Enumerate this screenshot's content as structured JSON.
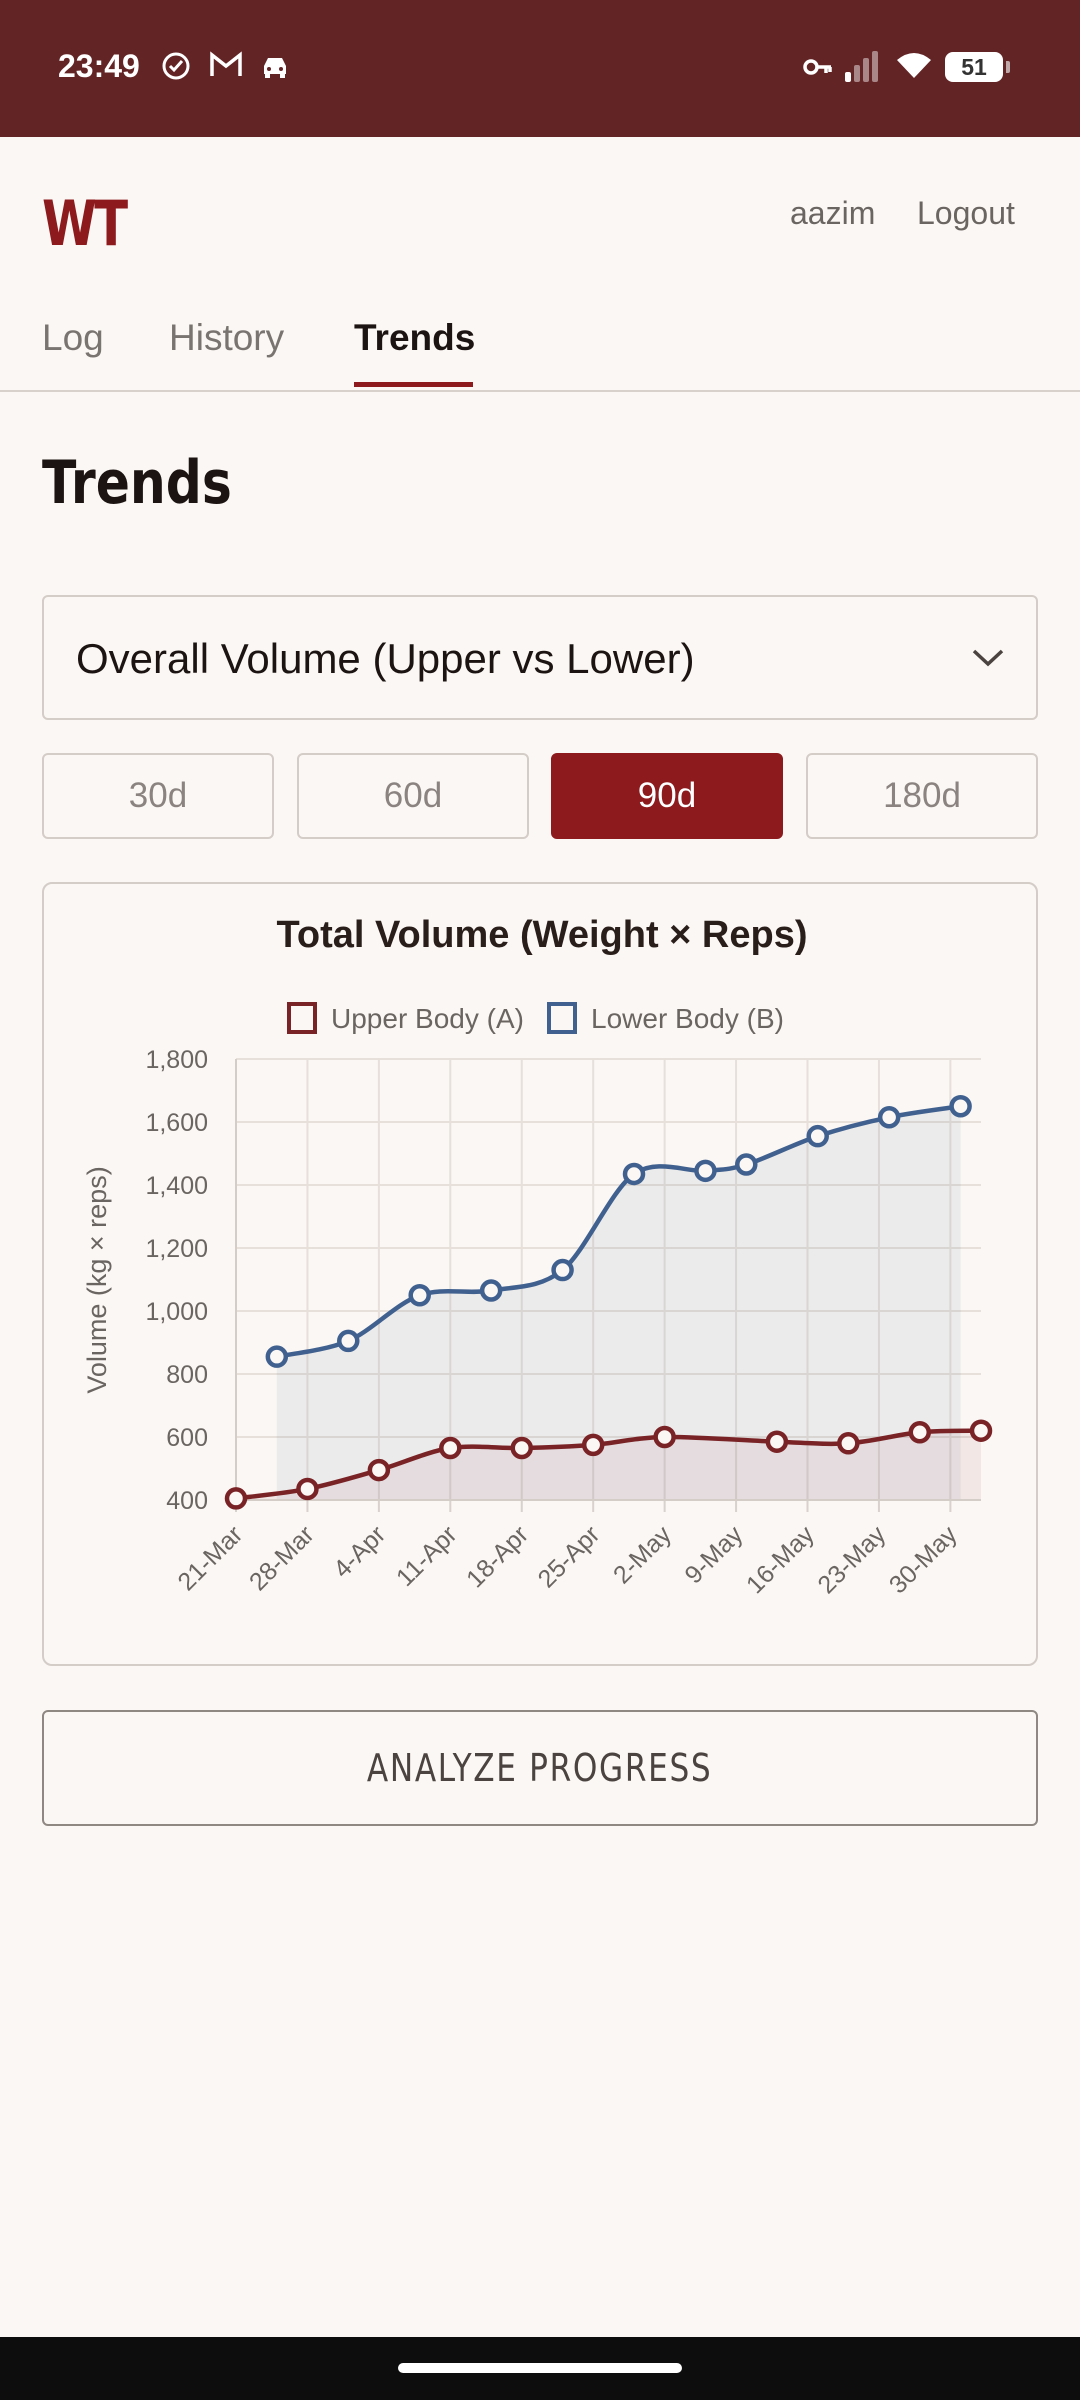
{
  "status_bar": {
    "time": "23:49",
    "battery": "51",
    "icons": [
      "check-circle-icon",
      "gmail-icon",
      "car-icon",
      "vpn-key-icon",
      "signal-icon",
      "wifi-icon",
      "battery-icon"
    ]
  },
  "header": {
    "logo": "WT",
    "username": "aazim",
    "logout_label": "Logout"
  },
  "tabs": [
    {
      "label": "Log",
      "active": false
    },
    {
      "label": "History",
      "active": false
    },
    {
      "label": "Trends",
      "active": true
    }
  ],
  "page_title": "Trends",
  "metric_select": {
    "value": "Overall Volume (Upper vs Lower)"
  },
  "ranges": [
    {
      "label": "30d",
      "active": false
    },
    {
      "label": "60d",
      "active": false
    },
    {
      "label": "90d",
      "active": true
    },
    {
      "label": "180d",
      "active": false
    }
  ],
  "chart_data": {
    "type": "line",
    "title": "Total Volume (Weight × Reps)",
    "ylabel": "Volume (kg × reps)",
    "ylim": [
      400,
      1800
    ],
    "yticks": [
      "400",
      "600",
      "800",
      "1,000",
      "1,200",
      "1,400",
      "1,600",
      "1,800"
    ],
    "xticks": [
      "21-Mar",
      "28-Mar",
      "4-Apr",
      "11-Apr",
      "18-Apr",
      "25-Apr",
      "2-May",
      "9-May",
      "16-May",
      "23-May",
      "30-May"
    ],
    "x_range": [
      "2024-03-21",
      "2024-06-02"
    ],
    "legend_position": "top",
    "grid": true,
    "series": [
      {
        "name": "Upper Body (A)",
        "color": "#7a2326",
        "points": [
          {
            "date": "2024-03-21",
            "y": 405
          },
          {
            "date": "2024-03-28",
            "y": 435
          },
          {
            "date": "2024-04-04",
            "y": 495
          },
          {
            "date": "2024-04-11",
            "y": 565
          },
          {
            "date": "2024-04-18",
            "y": 565
          },
          {
            "date": "2024-04-25",
            "y": 575
          },
          {
            "date": "2024-05-02",
            "y": 600
          },
          {
            "date": "2024-05-13",
            "y": 585
          },
          {
            "date": "2024-05-20",
            "y": 580
          },
          {
            "date": "2024-05-27",
            "y": 615
          },
          {
            "date": "2024-06-02",
            "y": 620
          }
        ]
      },
      {
        "name": "Lower Body (B)",
        "color": "#40618f",
        "points": [
          {
            "date": "2024-03-25",
            "y": 855
          },
          {
            "date": "2024-04-01",
            "y": 905
          },
          {
            "date": "2024-04-08",
            "y": 1050
          },
          {
            "date": "2024-04-15",
            "y": 1065
          },
          {
            "date": "2024-04-22",
            "y": 1130
          },
          {
            "date": "2024-04-29",
            "y": 1435
          },
          {
            "date": "2024-05-06",
            "y": 1445
          },
          {
            "date": "2024-05-10",
            "y": 1465
          },
          {
            "date": "2024-05-17",
            "y": 1555
          },
          {
            "date": "2024-05-24",
            "y": 1615
          },
          {
            "date": "2024-05-31",
            "y": 1650
          }
        ]
      }
    ]
  },
  "analyze_label": "ANALYZE PROGRESS"
}
